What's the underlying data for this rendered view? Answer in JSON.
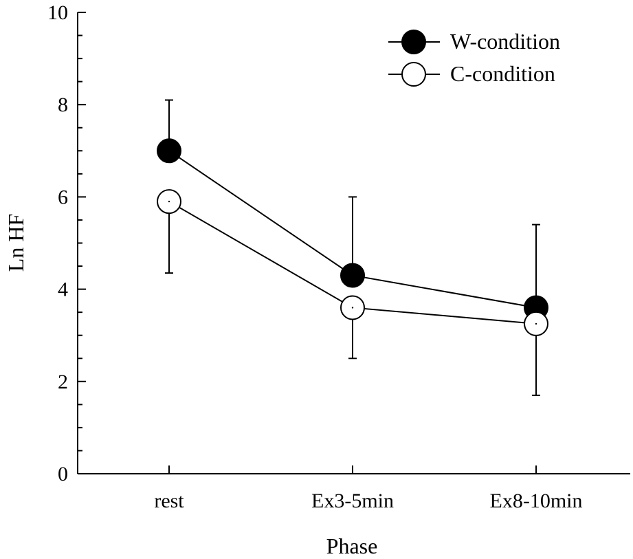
{
  "chart_data": {
    "type": "line",
    "title": "",
    "xlabel": "Phase",
    "ylabel": "Ln HF",
    "categories": [
      "rest",
      "Ex3-5min",
      "Ex8-10min"
    ],
    "ylim": [
      0,
      10
    ],
    "yticks": [
      "0",
      "2",
      "4",
      "6",
      "8",
      "10"
    ],
    "yminor_step": 0.5,
    "grid": false,
    "legend_position": "top-right",
    "series": [
      {
        "name": "W-condition",
        "marker": "filled-circle",
        "values": [
          7.0,
          4.3,
          3.6
        ],
        "error_up": [
          1.1,
          1.7,
          1.8
        ],
        "error_down": [
          0.0,
          0.0,
          0.0
        ]
      },
      {
        "name": "C-condition",
        "marker": "open-circle",
        "values": [
          5.9,
          3.6,
          3.25
        ],
        "error_up": [
          0.0,
          0.0,
          0.0
        ],
        "error_down": [
          1.55,
          1.1,
          1.55
        ]
      }
    ],
    "colors": {
      "line": "#000000",
      "filled": "#000000",
      "open": "#ffffff"
    }
  }
}
